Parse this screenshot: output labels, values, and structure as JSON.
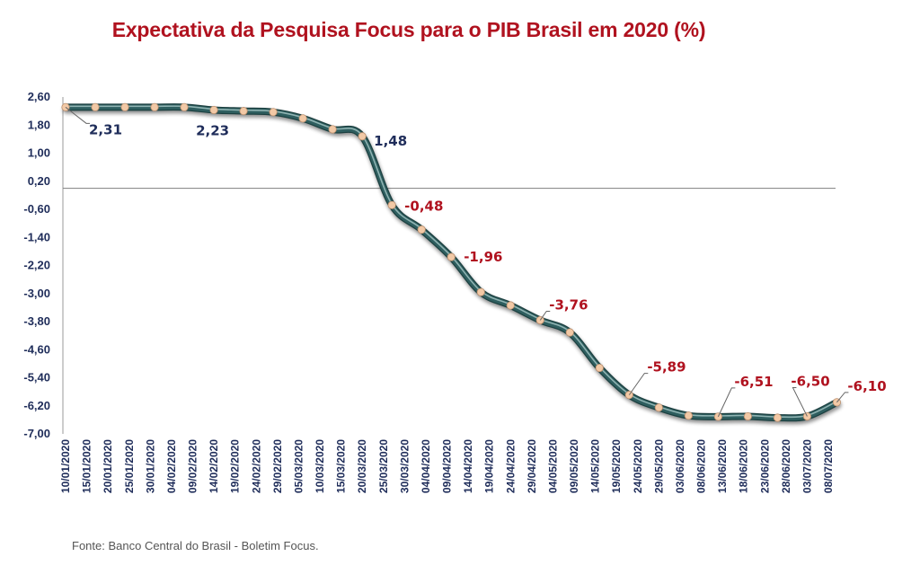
{
  "title": "Expectativa da Pesquisa Focus para o PIB Brasil em 2020 (%)",
  "source": "Fonte: Banco Central do Brasil - Boletim Focus.",
  "colors": {
    "title": "#b0121f",
    "line": "#2e5e5f",
    "marker": "#f2c9a6",
    "positive_label": "#1f2d5a",
    "negative_label": "#b0121f",
    "axis_text": "#1f2d5a"
  },
  "chart_data": {
    "type": "line",
    "title": "Expectativa da Pesquisa Focus para o PIB Brasil em 2020 (%)",
    "xlabel": "",
    "ylabel": "",
    "ylim": [
      -7.0,
      2.6
    ],
    "yticks": [
      "2,60",
      "1,80",
      "1,00",
      "0,20",
      "-0,60",
      "-1,40",
      "-2,20",
      "-3,00",
      "-3,80",
      "-4,60",
      "-5,40",
      "-6,20",
      "-7,00"
    ],
    "x_tick_labels": [
      "10/01/2020",
      "15/01/2020",
      "20/01/2020",
      "25/01/2020",
      "30/01/2020",
      "04/02/2020",
      "09/02/2020",
      "14/02/2020",
      "19/02/2020",
      "24/02/2020",
      "29/02/2020",
      "05/03/2020",
      "10/03/2020",
      "15/03/2020",
      "20/03/2020",
      "25/03/2020",
      "30/03/2020",
      "04/04/2020",
      "09/04/2020",
      "14/04/2020",
      "19/04/2020",
      "24/04/2020",
      "29/04/2020",
      "04/05/2020",
      "09/05/2020",
      "14/05/2020",
      "19/05/2020",
      "24/05/2020",
      "29/05/2020",
      "03/06/2020",
      "08/06/2020",
      "13/06/2020",
      "18/06/2020",
      "23/06/2020",
      "28/06/2020",
      "03/07/2020",
      "08/07/2020"
    ],
    "series": [
      {
        "points": [
          {
            "x": "10/01/2020",
            "y": 2.31
          },
          {
            "x": "17/01/2020",
            "y": 2.31
          },
          {
            "x": "24/01/2020",
            "y": 2.31
          },
          {
            "x": "31/01/2020",
            "y": 2.31
          },
          {
            "x": "07/02/2020",
            "y": 2.31
          },
          {
            "x": "14/02/2020",
            "y": 2.23
          },
          {
            "x": "21/02/2020",
            "y": 2.2
          },
          {
            "x": "28/02/2020",
            "y": 2.17
          },
          {
            "x": "06/03/2020",
            "y": 1.99
          },
          {
            "x": "13/03/2020",
            "y": 1.68
          },
          {
            "x": "20/03/2020",
            "y": 1.48
          },
          {
            "x": "27/03/2020",
            "y": -0.48
          },
          {
            "x": "03/04/2020",
            "y": -1.18
          },
          {
            "x": "10/04/2020",
            "y": -1.96
          },
          {
            "x": "17/04/2020",
            "y": -2.96
          },
          {
            "x": "24/04/2020",
            "y": -3.34
          },
          {
            "x": "01/05/2020",
            "y": -3.76
          },
          {
            "x": "08/05/2020",
            "y": -4.11
          },
          {
            "x": "15/05/2020",
            "y": -5.12
          },
          {
            "x": "22/05/2020",
            "y": -5.89
          },
          {
            "x": "29/05/2020",
            "y": -6.25
          },
          {
            "x": "05/06/2020",
            "y": -6.48
          },
          {
            "x": "12/06/2020",
            "y": -6.51
          },
          {
            "x": "19/06/2020",
            "y": -6.5
          },
          {
            "x": "26/06/2020",
            "y": -6.54
          },
          {
            "x": "03/07/2020",
            "y": -6.5
          },
          {
            "x": "10/07/2020",
            "y": -6.1
          }
        ]
      }
    ],
    "data_labels": [
      {
        "x": "10/01/2020",
        "text": "2,31",
        "sign": "positive"
      },
      {
        "x": "14/02/2020",
        "text": "2,23",
        "sign": "positive"
      },
      {
        "x": "20/03/2020",
        "text": "1,48",
        "sign": "positive"
      },
      {
        "x": "27/03/2020",
        "text": "-0,48",
        "sign": "negative"
      },
      {
        "x": "10/04/2020",
        "text": "-1,96",
        "sign": "negative"
      },
      {
        "x": "01/05/2020",
        "text": "-3,76",
        "sign": "negative"
      },
      {
        "x": "22/05/2020",
        "text": "-5,89",
        "sign": "negative"
      },
      {
        "x": "12/06/2020",
        "text": "-6,51",
        "sign": "negative"
      },
      {
        "x": "03/07/2020",
        "text": "-6,50",
        "sign": "negative"
      },
      {
        "x": "10/07/2020",
        "text": "-6,10",
        "sign": "negative"
      }
    ],
    "reference_line": {
      "y": 0
    },
    "grid": false,
    "legend": "none"
  }
}
